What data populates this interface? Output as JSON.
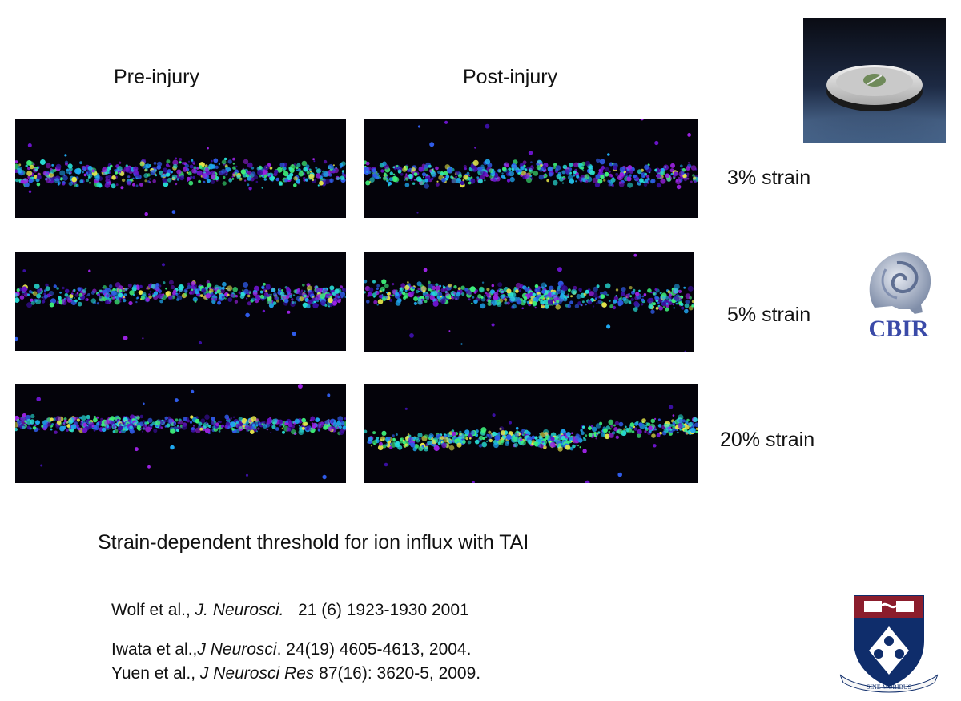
{
  "columns": {
    "pre": "Pre-injury",
    "post": "Post-injury"
  },
  "rows": [
    {
      "strain": "3% strain"
    },
    {
      "strain": "5% strain"
    },
    {
      "strain": "20% strain"
    }
  ],
  "caption": "Strain-dependent threshold for ion influx with TAI",
  "references": [
    {
      "authors": "Wolf et al., ",
      "journal": "J. Neurosci.",
      "details": "   21 (6) 1923-1930 2001"
    },
    {
      "authors": "Iwata et al.,",
      "journal": "J Neurosci",
      "details": ". 24(19) 4605-4613, 2004."
    },
    {
      "authors": "Yuen et al., ",
      "journal": "J Neurosci Res",
      "details": " 87(16): 3620-5, 2009."
    }
  ],
  "logos": {
    "cbir_text": "CBIR",
    "shield_motto": "SINE MORIBUS"
  },
  "icons": {
    "dish": "cell-stretch-device-image",
    "cbir": "cbir-spiral-head-logo",
    "shield": "university-crest-logo"
  },
  "colors": {
    "panel_bg": "#04030a",
    "cbir_blue": "#3a4aa8",
    "shield_red": "#8b1d2c",
    "shield_blue": "#0f2d6b"
  }
}
